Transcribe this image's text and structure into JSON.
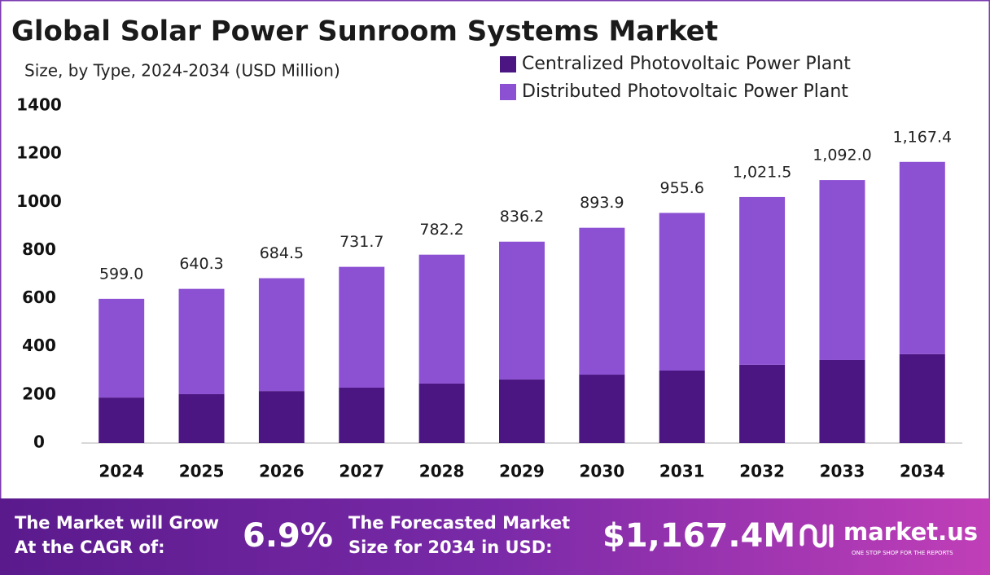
{
  "chart_data": {
    "type": "stacked_bar",
    "title": "Global Solar Power Sunroom Systems Market",
    "subtitle": "Size, by Type, 2024-2034 (USD Million)",
    "categories": [
      "2024",
      "2025",
      "2026",
      "2027",
      "2028",
      "2029",
      "2030",
      "2031",
      "2032",
      "2033",
      "2034"
    ],
    "series": [
      {
        "name": "Centralized Photovoltaic Power Plant",
        "color": "#4b1682",
        "values": [
          189,
          203,
          216,
          230,
          247,
          264,
          284,
          301,
          325,
          345,
          369
        ]
      },
      {
        "name": "Distributed Photovoltaic Power Plant",
        "color": "#8c50d2",
        "values": [
          410,
          437.3,
          468.5,
          501.7,
          535.2,
          572.2,
          609.9,
          654.6,
          696.5,
          747.0,
          798.4
        ]
      }
    ],
    "totals": {
      "values": [
        599.0,
        640.3,
        684.5,
        731.7,
        782.2,
        836.2,
        893.9,
        955.6,
        1021.5,
        1092.0,
        1167.4
      ],
      "value_labels": [
        "599.0",
        "640.3",
        "684.5",
        "731.7",
        "782.2",
        "836.2",
        "893.9",
        "955.6",
        "1,021.5",
        "1,092.0",
        "1,167.4"
      ]
    },
    "ylim": [
      0,
      1400
    ],
    "yticks": [
      0,
      200,
      400,
      600,
      800,
      1000,
      1200,
      1400
    ],
    "legend": "top-right",
    "grid": false
  },
  "footer": {
    "cagr_text": [
      "The Market will Grow",
      "At the CAGR of:"
    ],
    "cagr_value": "6.9%",
    "forecast_text": [
      "The Forecasted Market",
      "Size for 2034 in USD:"
    ],
    "forecast_value": "$1,167.4M",
    "brand": "market.us",
    "tagline": "ONE STOP SHOP FOR THE REPORTS"
  }
}
